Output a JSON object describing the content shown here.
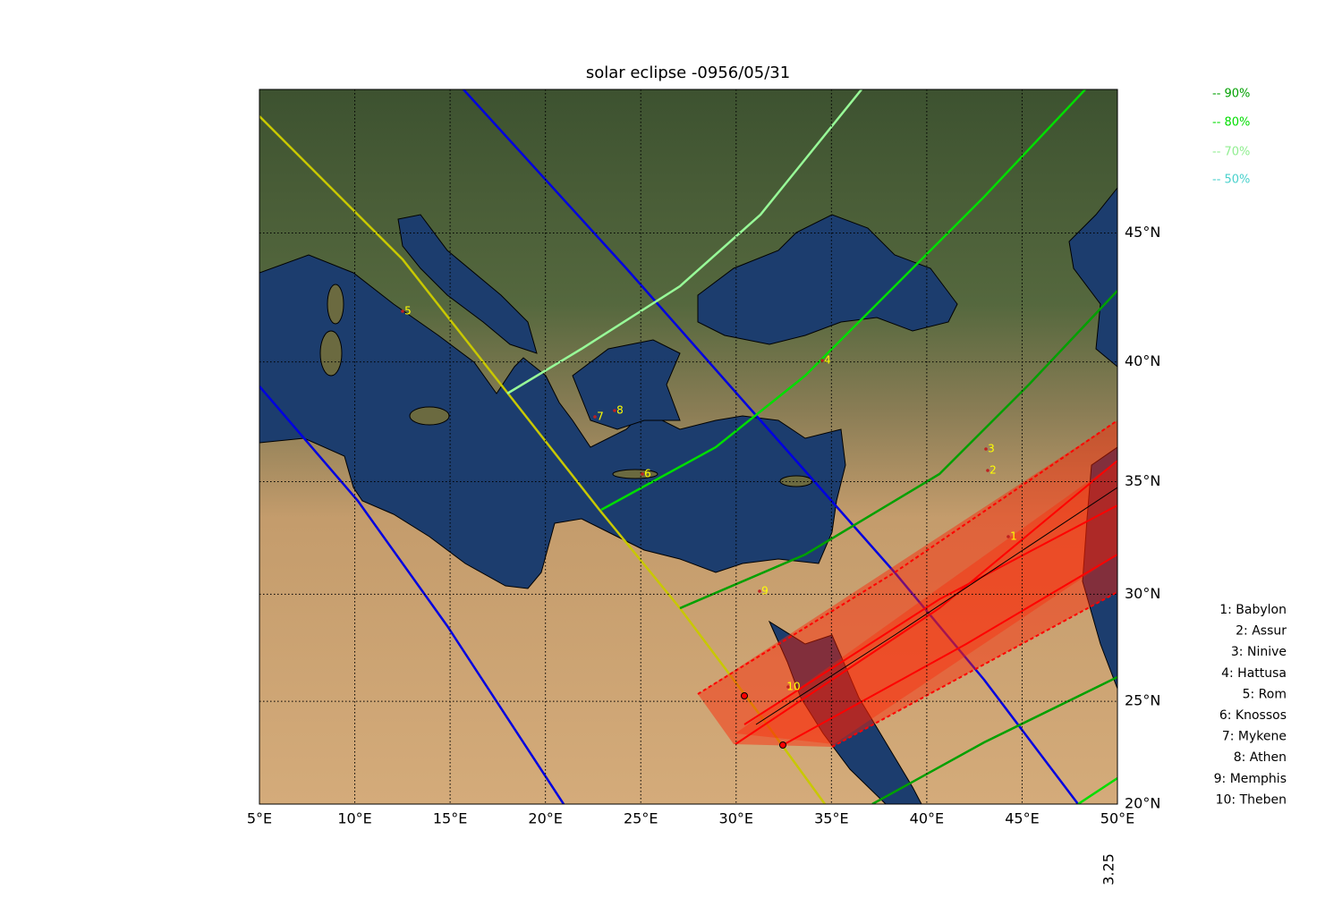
{
  "title": "solar eclipse -0956/05/31",
  "lonlim": [
    5,
    50
  ],
  "latlim": [
    20,
    50.1
  ],
  "lon_ticks": [
    {
      "value": 5,
      "label": "5°E"
    },
    {
      "value": 10,
      "label": "10°E"
    },
    {
      "value": 15,
      "label": "15°E"
    },
    {
      "value": 20,
      "label": "20°E"
    },
    {
      "value": 25,
      "label": "25°E"
    },
    {
      "value": 30,
      "label": "30°E"
    },
    {
      "value": 35,
      "label": "35°E"
    },
    {
      "value": 40,
      "label": "40°E"
    },
    {
      "value": 45,
      "label": "45°E"
    },
    {
      "value": 50,
      "label": "50°E"
    }
  ],
  "lat_ticks": [
    {
      "value": 20,
      "label": "20°N"
    },
    {
      "value": 25,
      "label": "25°N"
    },
    {
      "value": 30,
      "label": "30°N"
    },
    {
      "value": 35,
      "label": "35°N"
    },
    {
      "value": 40,
      "label": "40°N"
    },
    {
      "value": 45,
      "label": "45°N"
    }
  ],
  "legend": [
    {
      "label": "-- 90%",
      "color": "#00a000"
    },
    {
      "label": "-- 80%",
      "color": "#00dd00"
    },
    {
      "label": "-- 70%",
      "color": "#90ee90"
    },
    {
      "label": "-- 50%",
      "color": "#48d1cc"
    }
  ],
  "places": [
    "1: Babylon",
    "2: Assur",
    "3: Ninive",
    "4: Hattusa",
    "5: Rom",
    "6: Knossos",
    "7: Mykene",
    "8: Athen",
    "9: Memphis",
    "10: Theben"
  ],
  "map_labels": [
    "1",
    "2",
    "3",
    "4",
    "5",
    "6",
    "7",
    "8",
    "9",
    "10"
  ],
  "side_note": "3.25"
}
